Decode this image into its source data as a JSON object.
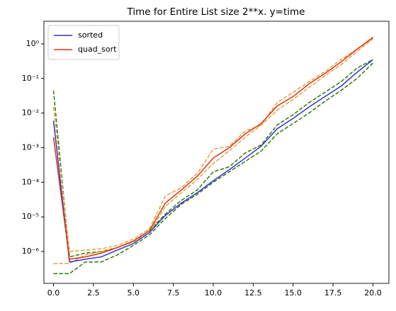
{
  "chart_data": {
    "type": "line",
    "title": "Time for Entire List size 2**x. y=time",
    "yscale": "log",
    "legend": "upper left",
    "x": [
      0,
      1,
      2,
      3,
      4,
      5,
      6,
      7,
      8,
      9,
      10,
      11,
      12,
      13,
      14,
      15,
      16,
      17,
      18,
      19,
      20
    ],
    "xlim": [
      -0.6,
      21
    ],
    "xticks": [
      {
        "value": 0,
        "label": "0.0"
      },
      {
        "value": 2.5,
        "label": "2.5"
      },
      {
        "value": 5,
        "label": "5.0"
      },
      {
        "value": 7.5,
        "label": "7.5"
      },
      {
        "value": 10,
        "label": "10.0"
      },
      {
        "value": 12.5,
        "label": "12.5"
      },
      {
        "value": 15,
        "label": "15.0"
      },
      {
        "value": 17.5,
        "label": "17.5"
      },
      {
        "value": 20,
        "label": "20.0"
      }
    ],
    "ylim": [
      1.2e-07,
      4.5
    ],
    "yticks": [
      {
        "value": 1e-06,
        "label": "10⁻⁶"
      },
      {
        "value": 1e-05,
        "label": "10⁻⁵"
      },
      {
        "value": 0.0001,
        "label": "10⁻⁴"
      },
      {
        "value": 0.001,
        "label": "10⁻³"
      },
      {
        "value": 0.01,
        "label": "10⁻²"
      },
      {
        "value": 0.1,
        "label": "10⁻¹"
      },
      {
        "value": 1,
        "label": "10⁰"
      }
    ],
    "series": [
      {
        "color": "#2d7a0d",
        "dashed": true,
        "values": [
          2.3e-07,
          2.3e-07,
          5e-07,
          5e-07,
          8e-07,
          1.5e-06,
          3e-06,
          9e-06,
          2.3e-05,
          4.5e-05,
          0.0001,
          0.0002,
          0.0004,
          0.0008,
          0.0025,
          0.005,
          0.01,
          0.022,
          0.045,
          0.1,
          0.28
        ]
      },
      {
        "color": "#2d7a0d",
        "dashed": true,
        "values": [
          0.045,
          7e-07,
          9e-07,
          1e-06,
          1.3e-06,
          2e-06,
          4e-06,
          1.2e-05,
          3e-05,
          6e-05,
          0.0002,
          0.00028,
          0.0007,
          0.0012,
          0.0045,
          0.009,
          0.02,
          0.04,
          0.08,
          0.2,
          0.35
        ]
      },
      {
        "color": "#e8a03a",
        "dashed": true,
        "values": [
          4.5e-07,
          4.5e-07,
          8e-07,
          1e-06,
          1.3e-06,
          1.9e-06,
          3.5e-06,
          2e-05,
          5e-05,
          0.00012,
          0.00035,
          0.0008,
          0.002,
          0.0045,
          0.012,
          0.025,
          0.055,
          0.12,
          0.25,
          0.6,
          1.4
        ]
      },
      {
        "color": "#e8a03a",
        "dashed": true,
        "values": [
          0.015,
          1e-06,
          1.1e-06,
          1.2e-06,
          1.5e-06,
          2.3e-06,
          4.5e-06,
          4e-05,
          7e-05,
          0.00018,
          0.0009,
          0.0011,
          0.003,
          0.0045,
          0.02,
          0.04,
          0.08,
          0.16,
          0.35,
          0.7,
          1.6
        ]
      },
      {
        "name": "sorted",
        "color": "#3333cc",
        "values": [
          0.006,
          5e-07,
          6e-07,
          7e-07,
          1.1e-06,
          1.7e-06,
          3.5e-06,
          1.1e-05,
          2.5e-05,
          5e-05,
          0.00011,
          0.00023,
          0.0005,
          0.0011,
          0.0035,
          0.007,
          0.015,
          0.03,
          0.06,
          0.15,
          0.35
        ]
      },
      {
        "name": "quad_sort",
        "color": "#dd3311",
        "values": [
          0.002,
          6e-07,
          7e-07,
          9e-07,
          1.3e-06,
          2e-06,
          4e-06,
          2.5e-05,
          6e-05,
          0.00015,
          0.0005,
          0.001,
          0.0025,
          0.005,
          0.016,
          0.03,
          0.07,
          0.14,
          0.3,
          0.7,
          1.5
        ]
      }
    ]
  }
}
